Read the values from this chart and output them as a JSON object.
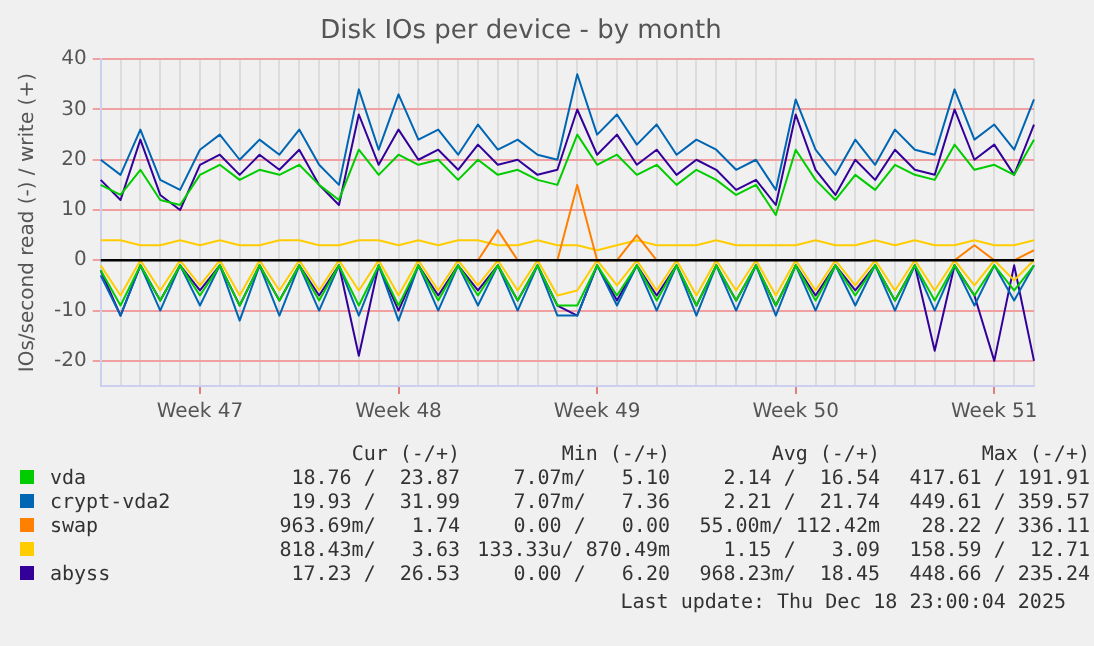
{
  "chart_data": {
    "type": "line",
    "title": "Disk IOs per device - by month",
    "ylabel": "IOs/second read (-) / write (+)",
    "categories": [
      null,
      null,
      null,
      null,
      null,
      "Week 47",
      null,
      null,
      null,
      null,
      null,
      null,
      null,
      null,
      null,
      "Week 48",
      null,
      null,
      null,
      null,
      null,
      null,
      null,
      null,
      null,
      "Week 49",
      null,
      null,
      null,
      null,
      null,
      null,
      null,
      null,
      null,
      "Week 50",
      null,
      null,
      null,
      null,
      null,
      null,
      null,
      null,
      null,
      "Week 51",
      null,
      null
    ],
    "ylim": [
      -25,
      40
    ],
    "yticks": [
      -20,
      -10,
      0,
      10,
      20,
      30,
      40
    ],
    "grid": true,
    "legend": "bottom",
    "series": [
      {
        "name": "vda",
        "color": "#00cc00",
        "values": [
          15,
          13,
          18,
          12,
          11,
          17,
          19,
          16,
          18,
          17,
          19,
          15,
          12,
          22,
          17,
          21,
          19,
          20,
          16,
          20,
          17,
          18,
          16,
          15,
          25,
          19,
          21,
          17,
          19,
          15,
          18,
          16,
          13,
          15,
          9,
          22,
          16,
          12,
          17,
          14,
          19,
          17,
          16,
          23,
          18,
          19,
          17,
          24
        ]
      },
      {
        "name": "crypt-vda2",
        "color": "#0066b3",
        "values": [
          20,
          17,
          26,
          16,
          14,
          22,
          25,
          20,
          24,
          21,
          26,
          19,
          15,
          34,
          22,
          33,
          24,
          26,
          21,
          27,
          22,
          24,
          21,
          20,
          37,
          25,
          29,
          23,
          27,
          21,
          24,
          22,
          18,
          20,
          14,
          32,
          22,
          17,
          24,
          19,
          26,
          22,
          21,
          34,
          24,
          27,
          22,
          32
        ]
      },
      {
        "name": "swap",
        "color": "#ff8000",
        "values": [
          null,
          null,
          null,
          null,
          null,
          null,
          null,
          null,
          null,
          null,
          null,
          null,
          null,
          null,
          null,
          null,
          null,
          null,
          null,
          0,
          6,
          0,
          null,
          0,
          15,
          0,
          0,
          5,
          0,
          null,
          null,
          null,
          null,
          null,
          null,
          null,
          null,
          null,
          null,
          null,
          null,
          null,
          null,
          0,
          3,
          0,
          0,
          2
        ]
      },
      {
        "color": "#ffcc00",
        "values": [
          4,
          4,
          3,
          3,
          4,
          3,
          4,
          3,
          3,
          4,
          4,
          3,
          3,
          4,
          4,
          3,
          4,
          3,
          4,
          4,
          3,
          3,
          4,
          3,
          3,
          2,
          3,
          4,
          3,
          3,
          3,
          4,
          3,
          3,
          3,
          3,
          4,
          3,
          3,
          4,
          3,
          4,
          3,
          3,
          4,
          3,
          3,
          4
        ]
      },
      {
        "name": "abyss",
        "color": "#330099",
        "values": [
          16,
          12,
          24,
          13,
          10,
          19,
          21,
          17,
          21,
          18,
          22,
          15,
          11,
          29,
          19,
          26,
          20,
          22,
          18,
          23,
          19,
          20,
          17,
          18,
          30,
          21,
          25,
          19,
          22,
          17,
          20,
          18,
          14,
          16,
          11,
          29,
          18,
          13,
          20,
          16,
          22,
          18,
          17,
          30,
          20,
          23,
          17,
          27
        ]
      },
      {
        "color": "#00cc00",
        "values": [
          -2,
          -9,
          -1,
          -8,
          -1,
          -7,
          -1,
          -9,
          -1,
          -8,
          -1,
          -8,
          -1,
          -9,
          -1,
          -9,
          -1,
          -8,
          -1,
          -7,
          -1,
          -8,
          -1,
          -9,
          -9,
          -1,
          -7,
          -1,
          -8,
          -1,
          -9,
          -1,
          -8,
          -1,
          -9,
          -1,
          -8,
          -1,
          -7,
          -1,
          -8,
          -1,
          -8,
          -1,
          -7,
          -1,
          -6,
          -1
        ]
      },
      {
        "color": "#0066b3",
        "values": [
          -3,
          -11,
          -1,
          -10,
          -1,
          -9,
          -1,
          -12,
          -1,
          -11,
          -1,
          -10,
          -1,
          -11,
          -1,
          -12,
          -1,
          -10,
          -1,
          -9,
          -1,
          -10,
          -1,
          -11,
          -11,
          -1,
          -9,
          -1,
          -10,
          -1,
          -11,
          -1,
          -10,
          -1,
          -11,
          -1,
          -10,
          -1,
          -9,
          -1,
          -10,
          -1,
          -10,
          -1,
          -9,
          -1,
          -8,
          -1
        ]
      },
      {
        "color": "#ffcc00",
        "values": [
          -1,
          -7,
          0,
          -6,
          0,
          -5,
          0,
          -7,
          0,
          -6,
          0,
          -6,
          0,
          -6,
          0,
          -7,
          0,
          -6,
          0,
          -5,
          0,
          -6,
          0,
          -7,
          -6,
          0,
          -5,
          0,
          -6,
          0,
          -7,
          0,
          -6,
          0,
          -7,
          0,
          -6,
          0,
          -5,
          0,
          -6,
          0,
          -6,
          0,
          -5,
          0,
          -4,
          0
        ]
      },
      {
        "color": "#330099",
        "values": [
          -2,
          -11,
          -1,
          -8,
          -1,
          -6,
          -1,
          -9,
          -1,
          -8,
          -1,
          -7,
          -1,
          -19,
          -1,
          -10,
          -1,
          -7,
          -1,
          -6,
          -1,
          -8,
          -1,
          -9,
          -11,
          -1,
          -8,
          -1,
          -7,
          -1,
          -9,
          -1,
          -8,
          -1,
          -9,
          -1,
          -7,
          -1,
          -6,
          -1,
          -8,
          -1,
          -18,
          -1,
          -7,
          -20,
          -1,
          -20
        ]
      }
    ],
    "annotations": [
      "Cur (-/+)",
      "Min (-/+)",
      "Avg (-/+)",
      "Max (-/+)",
      "18.76 /  23.87",
      "7.07m/   5.10",
      "2.14 /  16.54",
      "417.61 / 191.91",
      "19.93 /  31.99",
      "7.07m/   7.36",
      "2.21 /  21.74",
      "449.61 / 359.57",
      "963.69m/   1.74",
      "0.00 /   0.00",
      "55.00m/ 112.42m",
      "28.22 / 336.11",
      "818.43m/   3.63",
      "133.33u/ 870.49m",
      "1.15 /   3.09",
      "158.59 /  12.71",
      "17.23 /  26.53",
      "0.00 /   6.20",
      "968.23m/  18.45",
      "448.66 / 235.24",
      "Last update: Thu Dec 18 23:00:04 2025"
    ]
  }
}
